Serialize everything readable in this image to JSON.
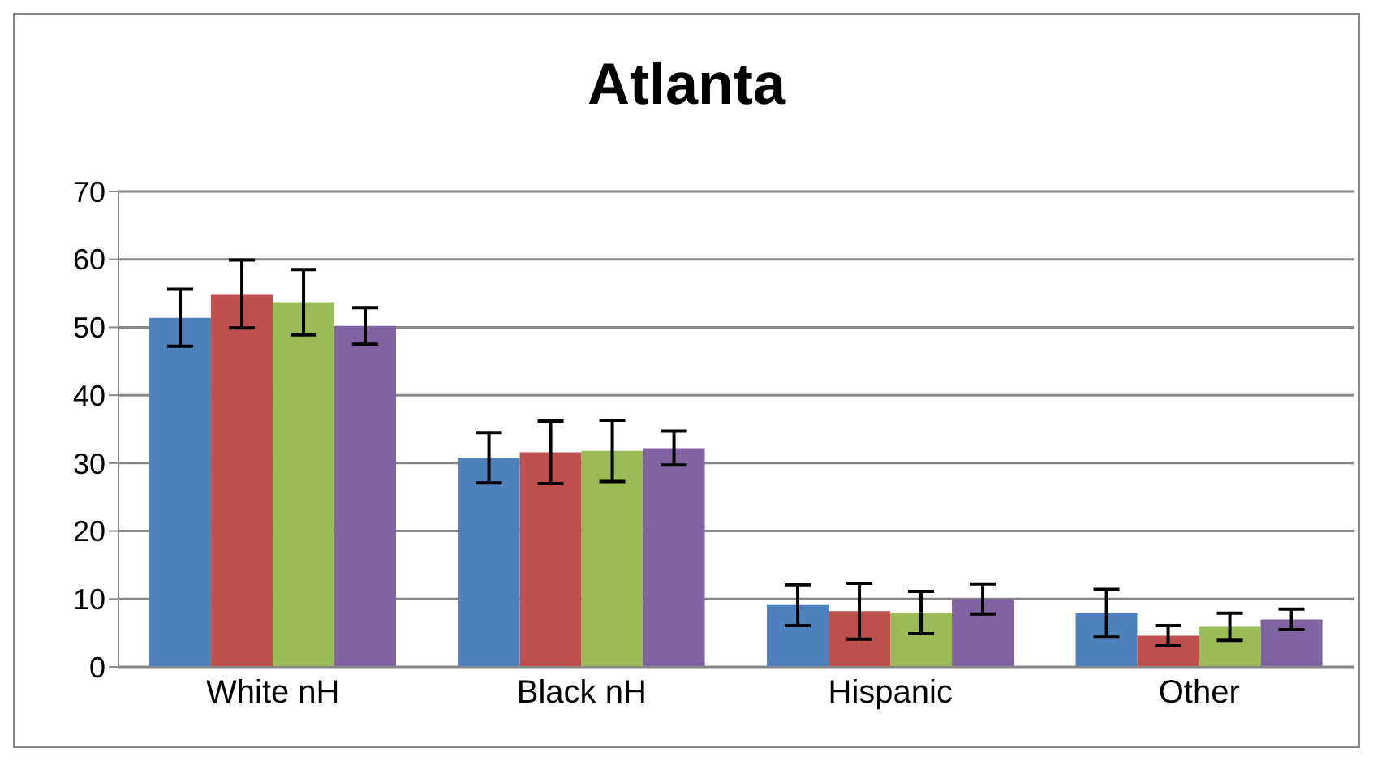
{
  "chart_data": {
    "type": "bar",
    "title": "Atlanta",
    "categories": [
      "White nH",
      "Black nH",
      "Hispanic",
      "Other"
    ],
    "series": [
      {
        "color": "#4f81bd",
        "values": [
          51.4,
          30.8,
          9.1,
          7.9
        ],
        "errors": [
          4.2,
          3.7,
          3,
          3.5
        ]
      },
      {
        "color": "#c0504d",
        "values": [
          54.9,
          31.6,
          8.2,
          4.6
        ],
        "errors": [
          5,
          4.6,
          4.1,
          1.5
        ]
      },
      {
        "color": "#9bbb59",
        "values": [
          53.7,
          31.8,
          8,
          5.9
        ],
        "errors": [
          4.8,
          4.5,
          3.1,
          2
        ]
      },
      {
        "color": "#8064a2",
        "values": [
          50.2,
          32.2,
          10,
          7
        ],
        "errors": [
          2.7,
          2.5,
          2.2,
          1.5
        ]
      }
    ],
    "ylim": [
      0,
      70
    ],
    "yticks": [
      0,
      10,
      20,
      30,
      40,
      50,
      60,
      70
    ],
    "grid": "y",
    "legend": false
  }
}
